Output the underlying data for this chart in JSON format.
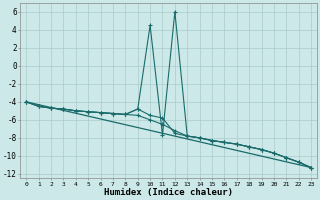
{
  "xlabel": "Humidex (Indice chaleur)",
  "xlim": [
    -0.5,
    23.5
  ],
  "ylim": [
    -12.5,
    7
  ],
  "yticks": [
    -12,
    -10,
    -8,
    -6,
    -4,
    -2,
    0,
    2,
    4,
    6
  ],
  "xticks": [
    0,
    1,
    2,
    3,
    4,
    5,
    6,
    7,
    8,
    9,
    10,
    11,
    12,
    13,
    14,
    15,
    16,
    17,
    18,
    19,
    20,
    21,
    22,
    23
  ],
  "bg_color": "#cce8e8",
  "grid_color": "#aacccc",
  "line_color": "#1a6b6b",
  "line_straight": [
    [
      0,
      -4.0
    ],
    [
      23,
      -11.3
    ]
  ],
  "series_flat": [
    [
      0,
      -4.0
    ],
    [
      1,
      -4.5
    ],
    [
      2,
      -4.7
    ],
    [
      3,
      -4.8
    ],
    [
      4,
      -5.0
    ],
    [
      5,
      -5.1
    ],
    [
      6,
      -5.2
    ],
    [
      7,
      -5.3
    ],
    [
      8,
      -5.4
    ],
    [
      9,
      -4.8
    ],
    [
      10,
      -5.5
    ],
    [
      11,
      -5.8
    ],
    [
      12,
      -7.5
    ],
    [
      13,
      -7.8
    ],
    [
      14,
      -8.0
    ],
    [
      15,
      -8.3
    ],
    [
      16,
      -8.5
    ],
    [
      17,
      -8.7
    ],
    [
      18,
      -9.0
    ],
    [
      19,
      -9.3
    ],
    [
      20,
      -9.7
    ],
    [
      21,
      -10.2
    ],
    [
      22,
      -10.7
    ],
    [
      23,
      -11.3
    ]
  ],
  "series_spike": [
    [
      0,
      -4.0
    ],
    [
      1,
      -4.5
    ],
    [
      2,
      -4.7
    ],
    [
      3,
      -4.8
    ],
    [
      4,
      -5.0
    ],
    [
      5,
      -5.1
    ],
    [
      6,
      -5.2
    ],
    [
      7,
      -5.3
    ],
    [
      8,
      -5.4
    ],
    [
      9,
      -4.8
    ],
    [
      10,
      4.5
    ],
    [
      11,
      -7.7
    ],
    [
      12,
      6.0
    ],
    [
      13,
      -7.8
    ],
    [
      14,
      -8.0
    ],
    [
      15,
      -8.3
    ],
    [
      16,
      -8.5
    ],
    [
      17,
      -8.7
    ],
    [
      18,
      -9.0
    ],
    [
      19,
      -9.3
    ],
    [
      20,
      -9.7
    ],
    [
      21,
      -10.2
    ],
    [
      22,
      -10.7
    ],
    [
      23,
      -11.3
    ]
  ],
  "series_mid": [
    [
      0,
      -4.0
    ],
    [
      1,
      -4.5
    ],
    [
      2,
      -4.7
    ],
    [
      3,
      -4.8
    ],
    [
      4,
      -5.0
    ],
    [
      5,
      -5.1
    ],
    [
      6,
      -5.2
    ],
    [
      7,
      -5.3
    ],
    [
      8,
      -5.4
    ],
    [
      9,
      -5.5
    ],
    [
      10,
      -6.0
    ],
    [
      11,
      -6.5
    ],
    [
      12,
      -7.2
    ],
    [
      13,
      -7.8
    ],
    [
      14,
      -8.0
    ],
    [
      15,
      -8.3
    ],
    [
      16,
      -8.5
    ],
    [
      17,
      -8.7
    ],
    [
      18,
      -9.0
    ],
    [
      19,
      -9.3
    ],
    [
      20,
      -9.7
    ],
    [
      21,
      -10.2
    ],
    [
      22,
      -10.7
    ],
    [
      23,
      -11.3
    ]
  ]
}
